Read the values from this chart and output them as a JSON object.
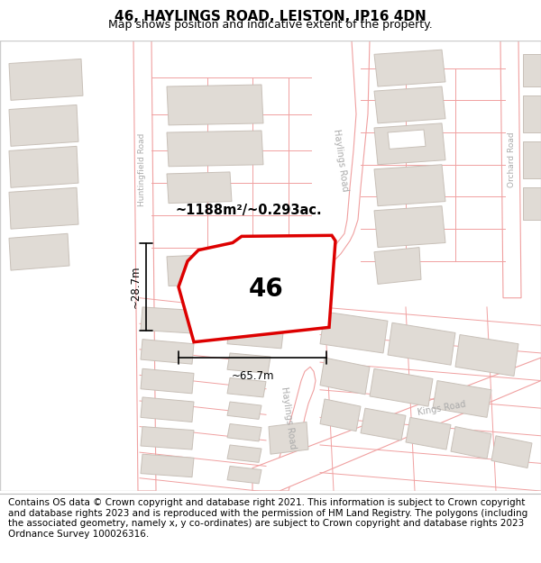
{
  "title": "46, HAYLINGS ROAD, LEISTON, IP16 4DN",
  "subtitle": "Map shows position and indicative extent of the property.",
  "footer": "Contains OS data © Crown copyright and database right 2021. This information is subject to Crown copyright and database rights 2023 and is reproduced with the permission of HM Land Registry. The polygons (including the associated geometry, namely x, y co-ordinates) are subject to Crown copyright and database rights 2023 Ordnance Survey 100026316.",
  "area_text": "~1188m²/~0.293ac.",
  "label_46": "46",
  "dim_width": "~65.7m",
  "dim_height": "~28.7m",
  "map_bg": "#ffffff",
  "building_fill": "#e0dbd5",
  "building_edge": "#c8c0b8",
  "road_line": "#f0a0a0",
  "road_fill": "#ffffff",
  "red_stroke": "#dd0000",
  "label_color": "#aaaaaa",
  "title_fontsize": 11,
  "subtitle_fontsize": 9,
  "footer_fontsize": 7.5
}
